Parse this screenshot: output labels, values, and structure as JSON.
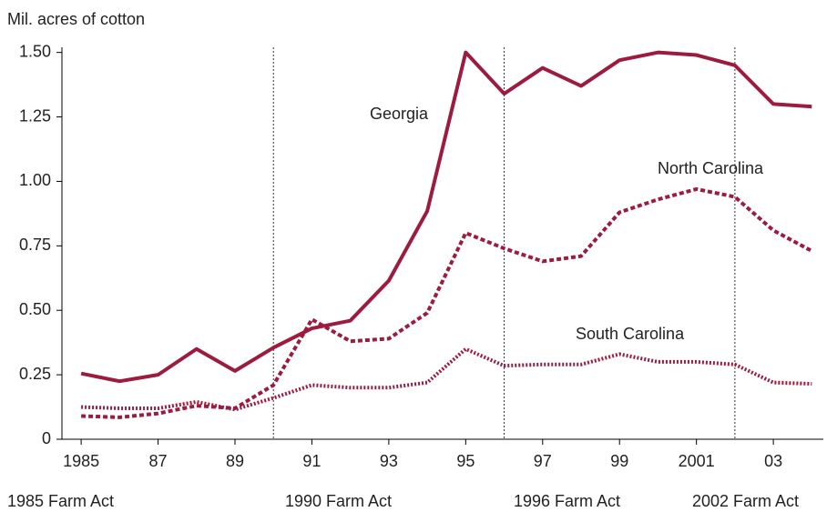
{
  "chart_data": {
    "type": "line",
    "y_axis_label": "Mil. acres of cotton",
    "x": [
      1985,
      1986,
      1987,
      1988,
      1989,
      1990,
      1991,
      1992,
      1993,
      1994,
      1995,
      1996,
      1997,
      1998,
      1999,
      2000,
      2001,
      2002,
      2003,
      2004
    ],
    "series": [
      {
        "name": "Georgia",
        "color": "#9b1c3f",
        "style": "solid",
        "values": [
          0.255,
          0.225,
          0.25,
          0.35,
          0.265,
          0.355,
          0.43,
          0.46,
          0.615,
          0.885,
          1.5,
          1.34,
          1.44,
          1.37,
          1.47,
          1.5,
          1.49,
          1.45,
          1.3,
          1.29
        ]
      },
      {
        "name": "North Carolina",
        "color": "#9b1c3f",
        "style": "dashed",
        "values": [
          0.09,
          0.085,
          0.1,
          0.13,
          0.12,
          0.21,
          0.465,
          0.38,
          0.39,
          0.49,
          0.8,
          0.74,
          0.69,
          0.71,
          0.88,
          0.93,
          0.97,
          0.94,
          0.81,
          0.73
        ]
      },
      {
        "name": "South Carolina",
        "color": "#9b1c3f",
        "style": "dotted",
        "values": [
          0.125,
          0.12,
          0.12,
          0.145,
          0.115,
          0.16,
          0.21,
          0.2,
          0.2,
          0.22,
          0.35,
          0.285,
          0.29,
          0.29,
          0.33,
          0.3,
          0.3,
          0.29,
          0.22,
          0.215
        ]
      }
    ],
    "xlim": [
      1984.5,
      2004.3
    ],
    "xticks": [
      1985,
      {
        "value": 1987,
        "label": "87"
      },
      {
        "value": 1989,
        "label": "89"
      },
      {
        "value": 1991,
        "label": "91"
      },
      {
        "value": 1993,
        "label": "93"
      },
      {
        "value": 1995,
        "label": "95"
      },
      {
        "value": 1997,
        "label": "97"
      },
      {
        "value": 1999,
        "label": "99"
      },
      2001,
      {
        "value": 2003,
        "label": "03"
      }
    ],
    "ylim": [
      0,
      1.52
    ],
    "yticks": [
      0,
      0.25,
      {
        "value": 0.5,
        "label": "0.50"
      },
      0.75,
      {
        "value": 1.0,
        "label": "1.00"
      },
      1.25,
      {
        "value": 1.5,
        "label": "1.50"
      }
    ],
    "reference_lines": [
      1990,
      1996,
      2002
    ],
    "farm_acts": [
      "1985 Farm Act",
      "1990 Farm Act",
      "1996 Farm Act",
      "2002 Farm Act"
    ]
  }
}
